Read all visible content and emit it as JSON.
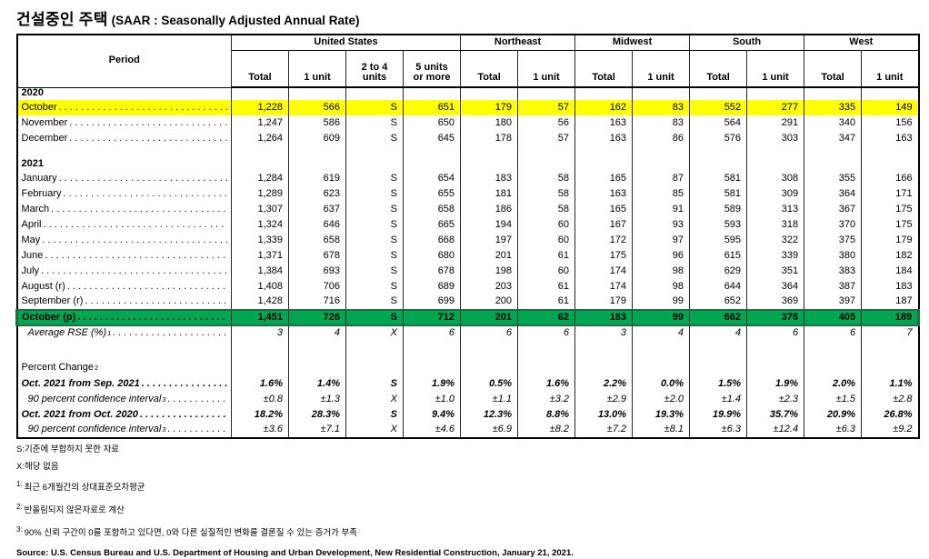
{
  "title": {
    "korean": "건설중인 주택",
    "english": "(SAAR : Seasonally Adjusted Annual Rate)"
  },
  "colors": {
    "highlight_yellow": "#FFFF00",
    "highlight_green": "#00A651",
    "selection_border": "#1E6E41"
  },
  "table": {
    "header": {
      "period": "Period",
      "groups": [
        {
          "label": "United States",
          "span": 4
        },
        {
          "label": "Northeast",
          "span": 2
        },
        {
          "label": "Midwest",
          "span": 2
        },
        {
          "label": "South",
          "span": 2
        },
        {
          "label": "West",
          "span": 2
        }
      ],
      "subcols": [
        {
          "lines": [
            "Total"
          ]
        },
        {
          "lines": [
            "1 unit"
          ]
        },
        {
          "lines": [
            "2 to 4",
            "units"
          ]
        },
        {
          "lines": [
            "5 units",
            "or more"
          ]
        },
        {
          "lines": [
            "Total"
          ]
        },
        {
          "lines": [
            "1 unit"
          ]
        },
        {
          "lines": [
            "Total"
          ]
        },
        {
          "lines": [
            "1 unit"
          ]
        },
        {
          "lines": [
            "Total"
          ]
        },
        {
          "lines": [
            "1 unit"
          ]
        },
        {
          "lines": [
            "Total"
          ]
        },
        {
          "lines": [
            "1 unit"
          ]
        }
      ]
    },
    "rows": [
      {
        "type": "year",
        "label": "2020"
      },
      {
        "type": "data",
        "label": "October",
        "highlight": "yellow",
        "values": [
          "1,228",
          "566",
          "S",
          "651",
          "179",
          "57",
          "162",
          "83",
          "552",
          "277",
          "335",
          "149"
        ]
      },
      {
        "type": "data",
        "label": "November",
        "values": [
          "1,247",
          "586",
          "S",
          "650",
          "180",
          "56",
          "163",
          "83",
          "564",
          "291",
          "340",
          "156"
        ]
      },
      {
        "type": "data",
        "label": "December",
        "values": [
          "1,264",
          "609",
          "S",
          "645",
          "178",
          "57",
          "163",
          "86",
          "576",
          "303",
          "347",
          "163"
        ]
      },
      {
        "type": "blank"
      },
      {
        "type": "year",
        "label": "2021"
      },
      {
        "type": "data",
        "label": "January",
        "values": [
          "1,284",
          "619",
          "S",
          "654",
          "183",
          "58",
          "165",
          "87",
          "581",
          "308",
          "355",
          "166"
        ]
      },
      {
        "type": "data",
        "label": "February",
        "values": [
          "1,289",
          "623",
          "S",
          "655",
          "181",
          "58",
          "163",
          "85",
          "581",
          "309",
          "364",
          "171"
        ]
      },
      {
        "type": "data",
        "label": "March",
        "values": [
          "1,307",
          "637",
          "S",
          "658",
          "186",
          "58",
          "165",
          "91",
          "589",
          "313",
          "367",
          "175"
        ]
      },
      {
        "type": "data",
        "label": "April",
        "values": [
          "1,324",
          "646",
          "S",
          "665",
          "194",
          "60",
          "167",
          "93",
          "593",
          "318",
          "370",
          "175"
        ]
      },
      {
        "type": "data",
        "label": "May",
        "values": [
          "1,339",
          "658",
          "S",
          "668",
          "197",
          "60",
          "172",
          "97",
          "595",
          "322",
          "375",
          "179"
        ]
      },
      {
        "type": "data",
        "label": "June",
        "values": [
          "1,371",
          "678",
          "S",
          "680",
          "201",
          "61",
          "175",
          "96",
          "615",
          "339",
          "380",
          "182"
        ]
      },
      {
        "type": "data",
        "label": "July",
        "values": [
          "1,384",
          "693",
          "S",
          "678",
          "198",
          "60",
          "174",
          "98",
          "629",
          "351",
          "383",
          "184"
        ]
      },
      {
        "type": "data",
        "label": "August (r)",
        "values": [
          "1,408",
          "706",
          "S",
          "689",
          "203",
          "61",
          "174",
          "98",
          "644",
          "364",
          "387",
          "183"
        ]
      },
      {
        "type": "data",
        "label": "September (r)",
        "values": [
          "1,428",
          "716",
          "S",
          "699",
          "200",
          "61",
          "179",
          "99",
          "652",
          "369",
          "397",
          "187"
        ]
      },
      {
        "type": "data",
        "label": "October (p)",
        "highlight": "green",
        "values": [
          "1,451",
          "726",
          "S",
          "712",
          "201",
          "62",
          "183",
          "99",
          "662",
          "376",
          "405",
          "189"
        ]
      },
      {
        "type": "data",
        "label": "Average RSE (%)",
        "sup": "1",
        "style": "italic",
        "indent": true,
        "values": [
          "3",
          "4",
          "X",
          "6",
          "6",
          "6",
          "3",
          "4",
          "4",
          "6",
          "6",
          "7"
        ]
      },
      {
        "type": "blank"
      },
      {
        "type": "label",
        "label": "Percent Change",
        "sup": "2"
      },
      {
        "type": "data",
        "label": "Oct. 2021 from Sep. 2021",
        "style": "bolditalic",
        "values": [
          "1.6%",
          "1.4%",
          "S",
          "1.9%",
          "0.5%",
          "1.6%",
          "2.2%",
          "0.0%",
          "1.5%",
          "1.9%",
          "2.0%",
          "1.1%"
        ]
      },
      {
        "type": "data",
        "label": "90 percent confidence interval",
        "sup": "3",
        "style": "italic",
        "indent": true,
        "values": [
          "±0.8",
          "±1.3",
          "X",
          "±1.0",
          "±1.1",
          "±3.2",
          "±2.9",
          "±2.0",
          "±1.4",
          "±2.3",
          "±1.5",
          "±2.8"
        ]
      },
      {
        "type": "data",
        "label": "Oct. 2021 from Oct. 2020",
        "style": "bolditalic",
        "values": [
          "18.2%",
          "28.3%",
          "S",
          "9.4%",
          "12.3%",
          "8.8%",
          "13.0%",
          "19.3%",
          "19.9%",
          "35.7%",
          "20.9%",
          "26.8%"
        ]
      },
      {
        "type": "data",
        "label": "90 percent confidence interval",
        "sup": "3",
        "style": "italic",
        "indent": true,
        "values": [
          "±3.6",
          "±7.1",
          "X",
          "±4.6",
          "±6.9",
          "±8.2",
          "±7.2",
          "±8.1",
          "±6.3",
          "±12.4",
          "±6.3",
          "±9.2"
        ]
      }
    ]
  },
  "footnotes": [
    {
      "prefix": "S:",
      "text": "기준에 부합하지 못한 자료"
    },
    {
      "prefix": "X:",
      "text": "해당 없음"
    },
    {
      "sup": "1:",
      "text": "최근 6개월간의 상대표준오차평균"
    },
    {
      "sup": "2:",
      "text": "반올림되지 않은자료로 계산"
    },
    {
      "sup": "3:",
      "text": "90% 신뢰 구간이 0를 포함하고 있다면, 0와 다른 실질적인 변화를 결론질 수 있는 증거가 부족"
    }
  ],
  "source": "Source: U.S. Census Bureau and U.S. Department of Housing and Urban Development, New Residential Construction, January 21, 2021."
}
